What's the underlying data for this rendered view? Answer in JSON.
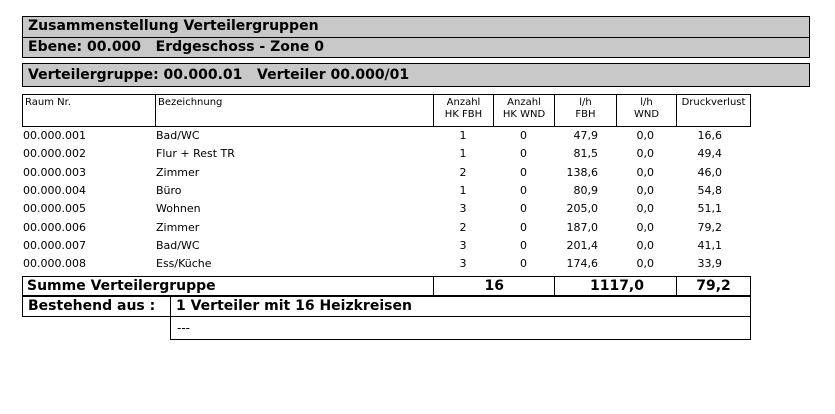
{
  "title": "Zusammenstellung Verteilergruppen",
  "level": "Ebene: 00.000   Erdgeschoss - Zone 0",
  "group": "Verteilergruppe: 00.000.01   Verteiler 00.000/01",
  "headers": {
    "raum": "Raum Nr.",
    "bezeichnung": "Bezeichnung",
    "anz_fbh_1": "Anzahl",
    "anz_fbh_2": "HK FBH",
    "anz_wnd_1": "Anzahl",
    "anz_wnd_2": "HK WND",
    "lh_fbh_1": "l/h",
    "lh_fbh_2": "FBH",
    "lh_wnd_1": "l/h",
    "lh_wnd_2": "WND",
    "druck": "Druckverlust"
  },
  "rows": [
    {
      "raum": "00.000.001",
      "bez": "Bad/WC",
      "hk_fbh": "1",
      "hk_wnd": "0",
      "lh_fbh": "47,9",
      "lh_wnd": "0,0",
      "druck": "16,6"
    },
    {
      "raum": "00.000.002",
      "bez": "Flur + Rest TR",
      "hk_fbh": "1",
      "hk_wnd": "0",
      "lh_fbh": "81,5",
      "lh_wnd": "0,0",
      "druck": "49,4"
    },
    {
      "raum": "00.000.003",
      "bez": "Zimmer",
      "hk_fbh": "2",
      "hk_wnd": "0",
      "lh_fbh": "138,6",
      "lh_wnd": "0,0",
      "druck": "46,0"
    },
    {
      "raum": "00.000.004",
      "bez": "Büro",
      "hk_fbh": "1",
      "hk_wnd": "0",
      "lh_fbh": "80,9",
      "lh_wnd": "0,0",
      "druck": "54,8"
    },
    {
      "raum": "00.000.005",
      "bez": "Wohnen",
      "hk_fbh": "3",
      "hk_wnd": "0",
      "lh_fbh": "205,0",
      "lh_wnd": "0,0",
      "druck": "51,1"
    },
    {
      "raum": "00.000.006",
      "bez": "Zimmer",
      "hk_fbh": "2",
      "hk_wnd": "0",
      "lh_fbh": "187,0",
      "lh_wnd": "0,0",
      "druck": "79,2"
    },
    {
      "raum": "00.000.007",
      "bez": "Bad/WC",
      "hk_fbh": "3",
      "hk_wnd": "0",
      "lh_fbh": "201,4",
      "lh_wnd": "0,0",
      "druck": "41,1"
    },
    {
      "raum": "00.000.008",
      "bez": "Ess/Küche",
      "hk_fbh": "3",
      "hk_wnd": "0",
      "lh_fbh": "174,6",
      "lh_wnd": "0,0",
      "druck": "33,9"
    }
  ],
  "summary": {
    "label": "Summe Verteilergruppe",
    "hk_total": "16",
    "lh_total": "1117,0",
    "druck_total": "79,2"
  },
  "composition": {
    "label": "Bestehend aus :",
    "value": "1 Verteiler mit 16 Heizkreisen",
    "extra": "---"
  }
}
